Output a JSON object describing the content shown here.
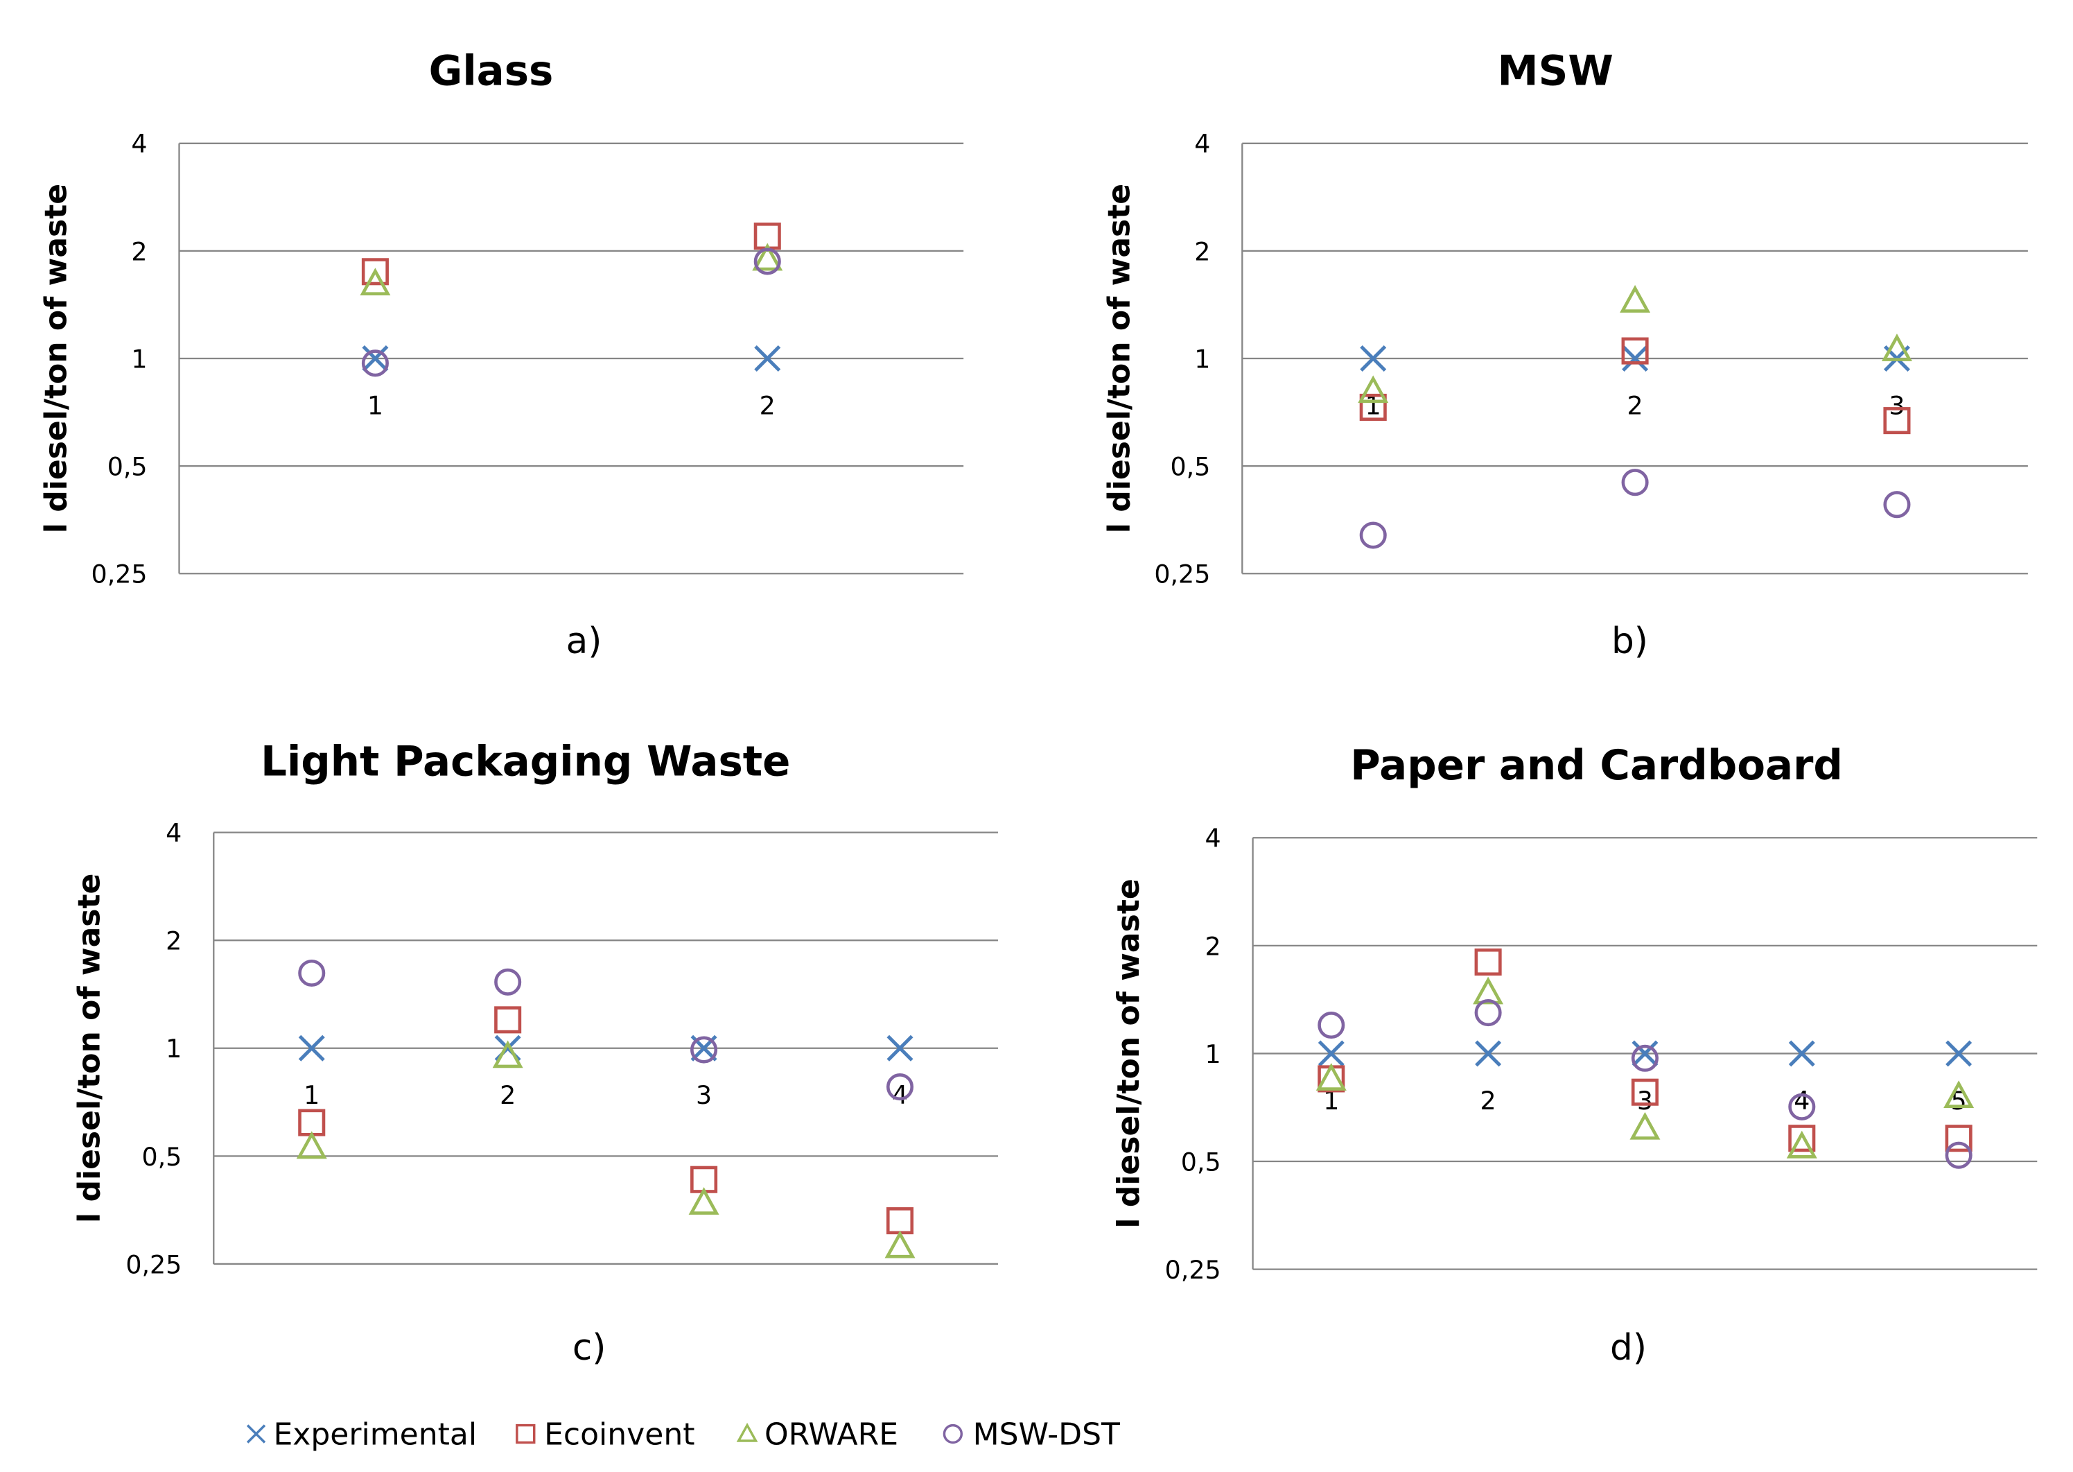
{
  "series_styles": {
    "Experimental": {
      "marker": "x",
      "color": "#4A7EBB"
    },
    "Ecoinvent": {
      "marker": "square",
      "color": "#C0504D"
    },
    "ORWARE": {
      "marker": "triangle",
      "color": "#9BBB59"
    },
    "MSW-DST": {
      "marker": "circle",
      "color": "#8064A2"
    }
  },
  "legend": [
    "Experimental",
    "Ecoinvent",
    "ORWARE",
    "MSW-DST"
  ],
  "chart_data": [
    {
      "type": "scatter",
      "title": "Glass",
      "caption": "a)",
      "ylabel": "l diesel/ton of waste",
      "yscale": "log2",
      "ylim": [
        0.25,
        4
      ],
      "yticks": [
        "0,25",
        "0,5",
        "1",
        "2",
        "4"
      ],
      "categories": [
        "1",
        "2"
      ],
      "grid": true,
      "series": [
        {
          "name": "Experimental",
          "values": [
            1.0,
            1.0
          ]
        },
        {
          "name": "Ecoinvent",
          "values": [
            1.75,
            2.2
          ]
        },
        {
          "name": "ORWARE",
          "values": [
            1.62,
            1.9
          ]
        },
        {
          "name": "MSW-DST",
          "values": [
            0.97,
            1.87
          ]
        }
      ]
    },
    {
      "type": "scatter",
      "title": "MSW",
      "caption": "b)",
      "ylabel": "l diesel/ton of waste",
      "yscale": "log2",
      "ylim": [
        0.25,
        4
      ],
      "yticks": [
        "0,25",
        "0,5",
        "1",
        "2",
        "4"
      ],
      "categories": [
        "1",
        "2",
        "3"
      ],
      "grid": true,
      "series": [
        {
          "name": "Experimental",
          "values": [
            1.0,
            1.0,
            1.0
          ]
        },
        {
          "name": "Ecoinvent",
          "values": [
            0.73,
            1.05,
            0.67
          ]
        },
        {
          "name": "ORWARE",
          "values": [
            0.81,
            1.45,
            1.06
          ]
        },
        {
          "name": "MSW-DST",
          "values": [
            0.32,
            0.45,
            0.39
          ]
        }
      ]
    },
    {
      "type": "scatter",
      "title": "Light Packaging Waste",
      "caption": "c)",
      "ylabel": "l diesel/ton of waste",
      "yscale": "log2",
      "ylim": [
        0.25,
        4
      ],
      "yticks": [
        "0,25",
        "0,5",
        "1",
        "2",
        "4"
      ],
      "categories": [
        "1",
        "2",
        "3",
        "4"
      ],
      "grid": true,
      "series": [
        {
          "name": "Experimental",
          "values": [
            1.0,
            1.0,
            1.0,
            1.0
          ]
        },
        {
          "name": "Ecoinvent",
          "values": [
            0.62,
            1.2,
            0.43,
            0.33
          ]
        },
        {
          "name": "ORWARE",
          "values": [
            0.53,
            0.95,
            0.37,
            0.28
          ]
        },
        {
          "name": "MSW-DST",
          "values": [
            1.62,
            1.53,
            0.99,
            0.78
          ]
        }
      ]
    },
    {
      "type": "scatter",
      "title": "Paper and Cardboard",
      "caption": "d)",
      "ylabel": "l diesel/ton of waste",
      "yscale": "log2",
      "ylim": [
        0.25,
        4
      ],
      "yticks": [
        "0,25",
        "0,5",
        "1",
        "2",
        "4"
      ],
      "categories": [
        "1",
        "2",
        "3",
        "4",
        "5"
      ],
      "grid": true,
      "series": [
        {
          "name": "Experimental",
          "values": [
            1.0,
            1.0,
            1.0,
            1.0,
            1.0
          ]
        },
        {
          "name": "Ecoinvent",
          "values": [
            0.85,
            1.8,
            0.78,
            0.58,
            0.58
          ]
        },
        {
          "name": "ORWARE",
          "values": [
            0.85,
            1.48,
            0.62,
            0.55,
            0.76
          ]
        },
        {
          "name": "MSW-DST",
          "values": [
            1.2,
            1.3,
            0.97,
            0.71,
            0.52
          ]
        }
      ]
    }
  ]
}
